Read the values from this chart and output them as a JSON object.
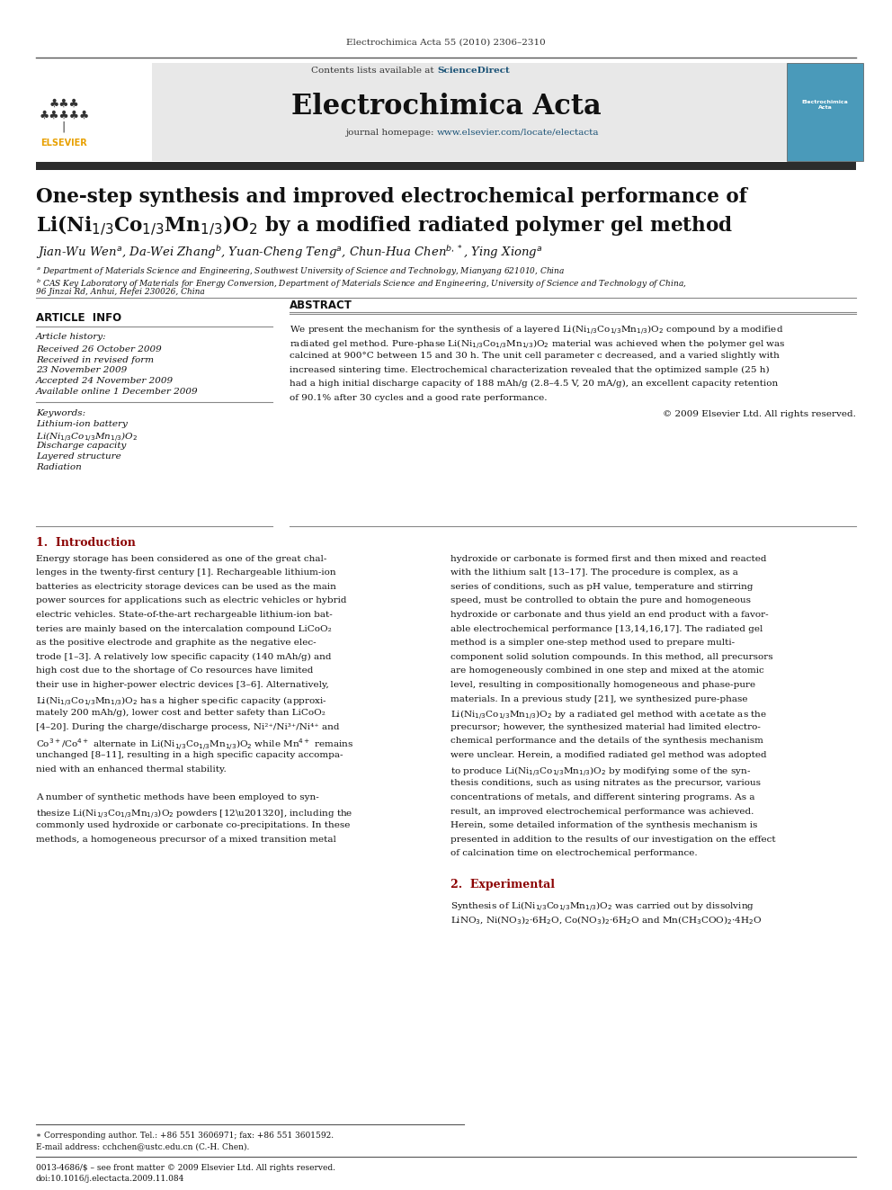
{
  "bg_color": "#ffffff",
  "page_width": 9.92,
  "page_height": 13.23,
  "header_journal_ref": "Electrochimica Acta 55 (2010) 2306–2310",
  "header_bg": "#e8e8e8",
  "journal_name": "Electrochimica Acta",
  "link_color": "#1a5276",
  "dark_bar_color": "#2c2c2c",
  "section_heading_color": "#8b0000",
  "received_1": "Received 26 October 2009",
  "received_2": "Received in revised form",
  "received_2b": "23 November 2009",
  "accepted": "Accepted 24 November 2009",
  "available": "Available online 1 December 2009"
}
